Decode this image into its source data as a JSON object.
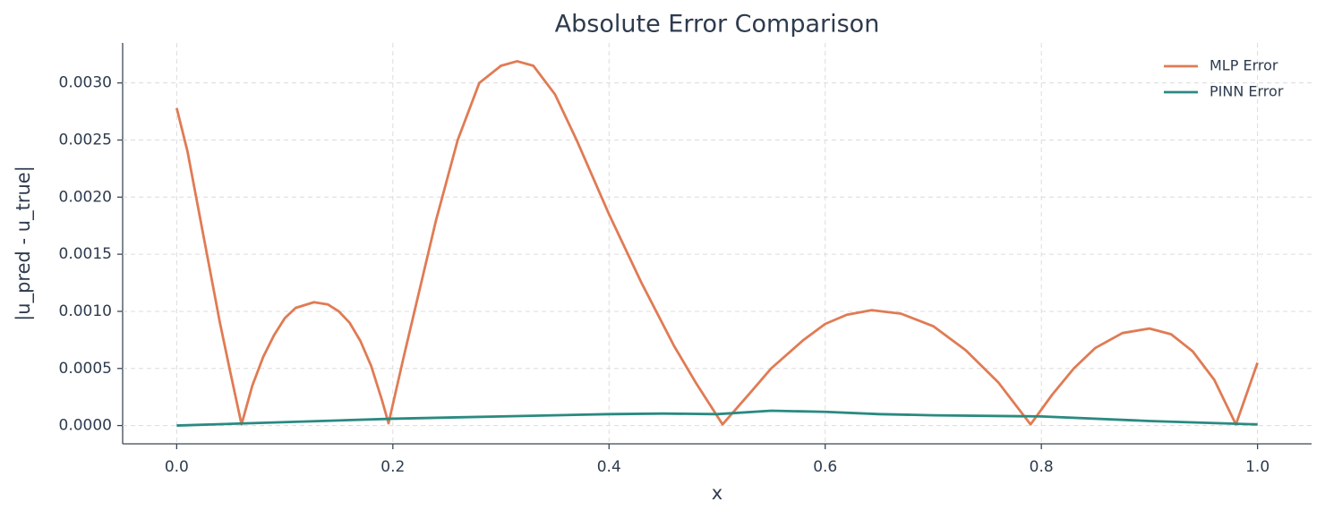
{
  "chart_data": {
    "type": "line",
    "title": "Absolute Error Comparison",
    "x_label": "x",
    "y_label": "|u_pred - u_true|",
    "xlim": [
      -0.05,
      1.05
    ],
    "ylim": [
      -0.00016,
      0.00335
    ],
    "xticks": [
      {
        "value": 0,
        "label": "0.0"
      },
      {
        "value": 0.2,
        "label": "0.2"
      },
      {
        "value": 0.4,
        "label": "0.4"
      },
      {
        "value": 0.6,
        "label": "0.6"
      },
      {
        "value": 0.8,
        "label": "0.8"
      },
      {
        "value": 1,
        "label": "1.0"
      }
    ],
    "yticks": [
      {
        "value": 0,
        "label": "0.0000"
      },
      {
        "value": 0.0005,
        "label": "0.0005"
      },
      {
        "value": 0.001,
        "label": "0.0010"
      },
      {
        "value": 0.0015,
        "label": "0.0015"
      },
      {
        "value": 0.002,
        "label": "0.0020"
      },
      {
        "value": 0.0025,
        "label": "0.0025"
      },
      {
        "value": 0.003,
        "label": "0.0030"
      }
    ],
    "grid": true,
    "legend": "upper right",
    "series": [
      {
        "name": "MLP Error",
        "color": "#e07b54",
        "x": [
          0,
          0.01,
          0.02,
          0.03,
          0.04,
          0.05,
          0.06,
          0.07,
          0.08,
          0.09,
          0.1,
          0.11,
          0.127,
          0.14,
          0.15,
          0.16,
          0.17,
          0.18,
          0.19,
          0.196,
          0.21,
          0.22,
          0.24,
          0.26,
          0.28,
          0.3,
          0.315,
          0.33,
          0.35,
          0.37,
          0.4,
          0.43,
          0.46,
          0.48,
          0.505,
          0.53,
          0.55,
          0.58,
          0.6,
          0.62,
          0.643,
          0.67,
          0.7,
          0.73,
          0.76,
          0.79,
          0.81,
          0.83,
          0.85,
          0.875,
          0.9,
          0.92,
          0.94,
          0.96,
          0.98,
          1.0
        ],
        "values": [
          0.00278,
          0.0024,
          0.0019,
          0.0014,
          0.0009,
          0.00045,
          1e-05,
          0.00035,
          0.0006,
          0.00079,
          0.00094,
          0.00103,
          0.00108,
          0.00106,
          0.001,
          0.0009,
          0.00074,
          0.00052,
          0.00022,
          2e-05,
          0.0006,
          0.001,
          0.0018,
          0.0025,
          0.003,
          0.00315,
          0.00319,
          0.00315,
          0.0029,
          0.0025,
          0.00185,
          0.00125,
          0.0007,
          0.00038,
          1e-05,
          0.00028,
          0.0005,
          0.00075,
          0.00089,
          0.00097,
          0.00101,
          0.00098,
          0.00087,
          0.00066,
          0.00038,
          1e-05,
          0.00027,
          0.0005,
          0.00068,
          0.00081,
          0.00085,
          0.0008,
          0.00065,
          0.0004,
          1e-05,
          0.00055
        ]
      },
      {
        "name": "PINN Error",
        "color": "#2a8a80",
        "x": [
          0,
          0.1,
          0.2,
          0.3,
          0.4,
          0.45,
          0.5,
          0.55,
          0.6,
          0.65,
          0.7,
          0.8,
          0.9,
          1.0
        ],
        "values": [
          0,
          3e-05,
          6e-05,
          8e-05,
          0.0001,
          0.000105,
          0.0001,
          0.00013,
          0.00012,
          0.0001,
          9e-05,
          8e-05,
          4e-05,
          1e-05
        ]
      }
    ]
  }
}
